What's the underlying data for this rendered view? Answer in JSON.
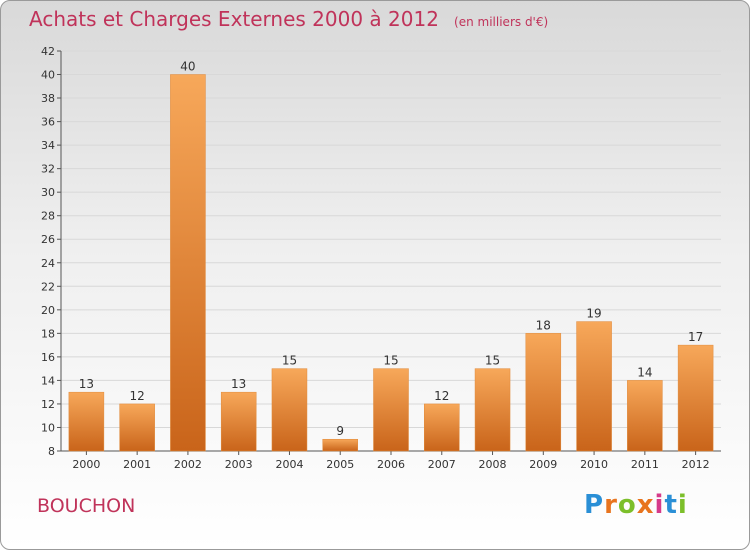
{
  "title": "Achats et Charges Externes 2000 à 2012",
  "unit_note": "(en milliers d'€)",
  "commune": "BOUCHON",
  "brand": {
    "letters": [
      "P",
      "r",
      "o",
      "x",
      "i",
      "t",
      "i"
    ],
    "colors": [
      "#2a8fd6",
      "#e8741e",
      "#7cbf2a",
      "#e8741e",
      "#d63a8a",
      "#2a8fd6",
      "#7cbf2a"
    ]
  },
  "colors": {
    "bar_light": "#f7a85a",
    "bar_dark": "#c9641a",
    "title": "#c0335a",
    "grid": "#d8d8d8",
    "axis": "#555555"
  },
  "chart_data": {
    "type": "bar",
    "categories": [
      "2000",
      "2001",
      "2002",
      "2003",
      "2004",
      "2005",
      "2006",
      "2007",
      "2008",
      "2009",
      "2010",
      "2011",
      "2012"
    ],
    "values": [
      13,
      12,
      40,
      13,
      15,
      9,
      15,
      12,
      15,
      18,
      19,
      14,
      17
    ],
    "ylim": [
      8,
      42
    ],
    "yticks": [
      8,
      10,
      12,
      14,
      16,
      18,
      20,
      22,
      24,
      26,
      28,
      30,
      32,
      34,
      36,
      38,
      40,
      42
    ],
    "grid": true,
    "data_labels": true
  }
}
